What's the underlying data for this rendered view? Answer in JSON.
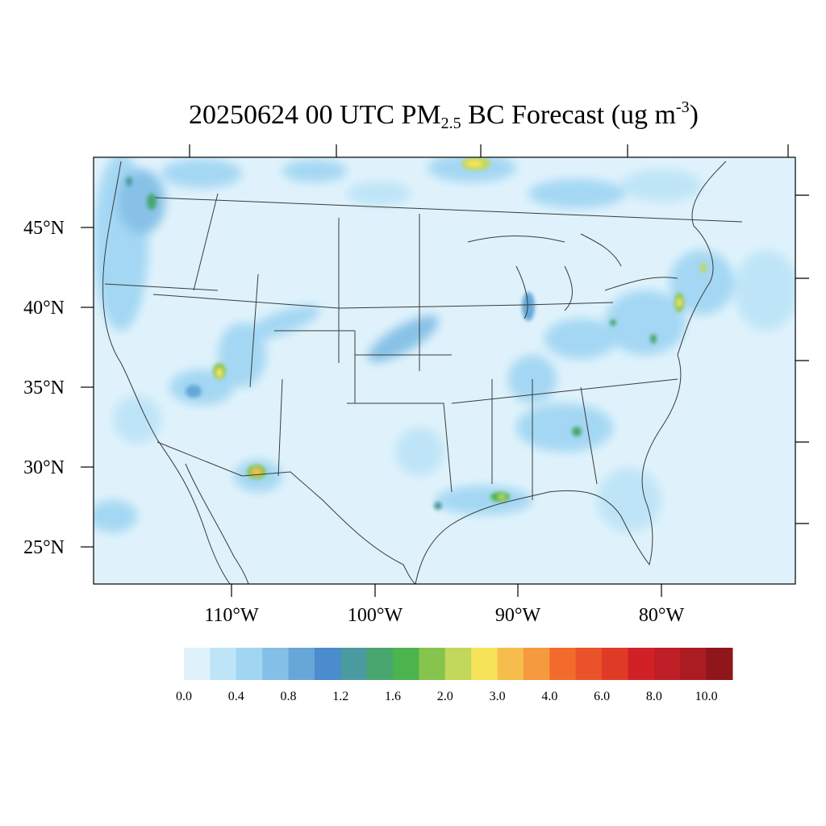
{
  "title": {
    "prefix": "20250624 00 UTC PM",
    "subscript": "2.5",
    "middle": " BC Forecast (ug m",
    "superscript": "-3",
    "suffix": ")"
  },
  "lat_labels": [
    "45°N",
    "40°N",
    "35°N",
    "30°N",
    "25°N"
  ],
  "lon_labels": [
    "110°W",
    "100°W",
    "90°W",
    "80°W"
  ],
  "colorbar": {
    "labels": [
      "0.0",
      "0.4",
      "0.8",
      "1.2",
      "1.6",
      "2.0",
      "3.0",
      "4.0",
      "6.0",
      "8.0",
      "10.0"
    ],
    "colors": [
      "#dff2fb",
      "#bde4f7",
      "#a1d6f3",
      "#83bfe6",
      "#66a7d8",
      "#4a8cce",
      "#4a9ba0",
      "#4aa66f",
      "#4cb44c",
      "#86c44e",
      "#c2d85a",
      "#f7e45a",
      "#f7bd4c",
      "#f59a3e",
      "#f26b2d",
      "#e9522a",
      "#df3a26",
      "#d22027",
      "#bf1f26",
      "#aa1c22",
      "#8f161b"
    ]
  },
  "colors": {
    "ocean": "#dff2fb",
    "land_background": "#dff2fb",
    "boundary": "#3a3a3a"
  }
}
